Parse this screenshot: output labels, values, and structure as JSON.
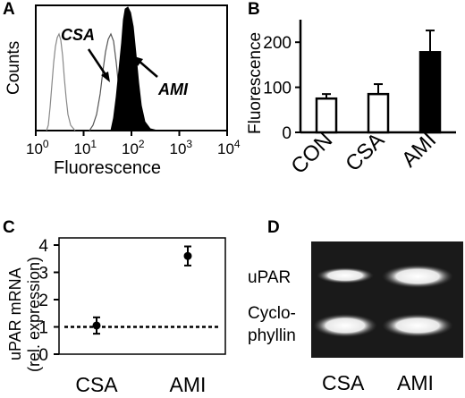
{
  "panels": {
    "A": {
      "letter": "A",
      "ylabel": "Counts",
      "xlabel": "Fluorescence",
      "annotations": [
        "CSA",
        "AMI"
      ],
      "xticks": [
        {
          "base": "10",
          "exp": "0"
        },
        {
          "base": "10",
          "exp": "1"
        },
        {
          "base": "10",
          "exp": "2"
        },
        {
          "base": "10",
          "exp": "3"
        },
        {
          "base": "10",
          "exp": "4"
        }
      ]
    },
    "B": {
      "letter": "B",
      "ylabel": "Fluorescence",
      "yticks": [
        "200",
        "100",
        "0"
      ]
    },
    "C": {
      "letter": "C",
      "ylabel_line1": "uPAR mRNA",
      "ylabel_line2": "(rel. expression)",
      "yticks": [
        "4",
        "3",
        "2",
        "1",
        "0"
      ]
    },
    "D": {
      "letter": "D",
      "band_labels": [
        "uPAR",
        "Cyclo-",
        "phyllin"
      ],
      "lanes": [
        "CSA",
        "AMI"
      ]
    }
  },
  "chart_data": [
    {
      "panel": "A",
      "type": "area",
      "xlabel": "Fluorescence",
      "ylabel": "Counts",
      "x_scale": "log",
      "xlim": [
        1,
        10000
      ],
      "series": [
        {
          "name": "CSA",
          "fill": "none",
          "peak_x": 40
        },
        {
          "name": "AMI",
          "fill": "#000000",
          "peak_x": 90
        }
      ],
      "grid": false
    },
    {
      "panel": "B",
      "type": "bar",
      "categories": [
        "CON",
        "CSA",
        "AMI"
      ],
      "values": [
        75,
        85,
        178
      ],
      "errors": [
        10,
        22,
        48
      ],
      "colors": [
        "#ffffff",
        "#ffffff",
        "#000000"
      ],
      "ylabel": "Fluorescence",
      "ylim": [
        0,
        250
      ],
      "grid": false
    },
    {
      "panel": "C",
      "type": "scatter",
      "categories": [
        "CSA",
        "AMI"
      ],
      "values": [
        1.05,
        3.6
      ],
      "errors": [
        0.3,
        0.35
      ],
      "reference_line": 1,
      "ylabel": "uPAR mRNA (rel. expression)",
      "ylim": [
        0,
        4
      ],
      "grid": false
    }
  ]
}
